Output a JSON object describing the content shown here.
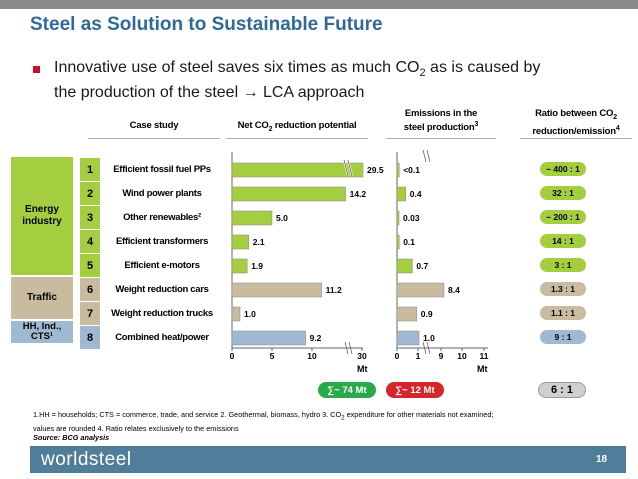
{
  "title": "Steel as Solution to Sustainable Future",
  "bullet": {
    "line1_prefix": "Innovative use of steel saves six times as much CO",
    "line1_sub": "2",
    "line1_suffix": " as is caused by",
    "line2": "the production of the steel → LCA approach"
  },
  "headers": {
    "case_study": "Case study",
    "net_prefix": "Net CO",
    "net_sub": "2",
    "net_suffix": " reduction potential",
    "emis_line1": "Emissions in the",
    "emis_line2_prefix": "steel production",
    "emis_line2_sup": "3",
    "ratio_line1_prefix": "Ratio between CO",
    "ratio_line1_sub": "2",
    "ratio_line2_prefix": "reduction/emission",
    "ratio_line2_sup": "4"
  },
  "groups": [
    {
      "label_l1": "Energy",
      "label_l2": "industry",
      "color": "#a4ce3f"
    },
    {
      "label_l1": "Traffic",
      "label_l2": "",
      "color": "#c8bb9f"
    },
    {
      "label_l1": "HH, Ind.,",
      "label_l2": "CTS¹",
      "color": "#9eb9d1"
    }
  ],
  "rows": [
    {
      "num": "1",
      "label": "Efficient fossil fuel PPs"
    },
    {
      "num": "2",
      "label": "Wind power plants"
    },
    {
      "num": "3",
      "label": "Other renewables²"
    },
    {
      "num": "4",
      "label": "Efficient transformers"
    },
    {
      "num": "5",
      "label": "Efficient e-motors"
    },
    {
      "num": "6",
      "label": "Weight reduction cars"
    },
    {
      "num": "7",
      "label": "Weight reduction trucks"
    },
    {
      "num": "8",
      "label": "Combined heat/power"
    }
  ],
  "chart_data": [
    {
      "type": "bar",
      "orientation": "horizontal",
      "title": "Net CO2 reduction potential",
      "categories": [
        "Efficient fossil fuel PPs",
        "Wind power plants",
        "Other renewables",
        "Efficient transformers",
        "Efficient e-motors",
        "Weight reduction cars",
        "Weight reduction trucks",
        "Combined heat/power"
      ],
      "values": [
        29.5,
        14.2,
        5.0,
        2.1,
        1.9,
        11.2,
        1.0,
        9.2
      ],
      "labels": [
        "29.5",
        "14.2",
        "5.0",
        "2.1",
        "1.9",
        "11.2",
        "1.0",
        "9.2"
      ],
      "xlabel": "Mt",
      "ticks": [
        "0",
        "5",
        "10",
        "30"
      ],
      "xlim": [
        0,
        30
      ],
      "axis_break": "between 15 and 29",
      "total": "∑~ 74 Mt"
    },
    {
      "type": "bar",
      "orientation": "horizontal",
      "title": "Emissions in the steel production",
      "categories": [
        "Efficient fossil fuel PPs",
        "Wind power plants",
        "Other renewables",
        "Efficient transformers",
        "Efficient e-motors",
        "Weight reduction cars",
        "Weight reduction trucks",
        "Combined heat/power"
      ],
      "values": [
        0.1,
        0.4,
        0.03,
        0.1,
        0.7,
        8.4,
        0.9,
        1.0
      ],
      "labels": [
        "<0.1",
        "0.4",
        "0.03",
        "0.1",
        "0.7",
        "8.4",
        "0.9",
        "1.0"
      ],
      "xlabel": "Mt",
      "ticks": [
        "0",
        "1",
        "9",
        "10",
        "11"
      ],
      "xlim": [
        0,
        11
      ],
      "axis_break": "between 1.3 and 8",
      "total": "∑~ 12 Mt"
    }
  ],
  "ratios": [
    "~ 400 : 1",
    "32 : 1",
    "~ 200 : 1",
    "14 : 1",
    "3 : 1",
    "1.3 : 1",
    "1.1 : 1",
    "9 : 1"
  ],
  "ratio_total": "6 : 1",
  "colors": {
    "energy": "#a4ce3f",
    "traffic": "#c8bb9f",
    "hh": "#9eb9d1",
    "sum_green": "#2aa84a",
    "sum_red": "#d6262b",
    "title_blue": "#2f6a99",
    "footer_blue": "#4f7d9a"
  },
  "footnote": {
    "line1": "1.HH = households; CTS = commerce, trade, and service 2. Geothermal, biomass, hydro 3. CO",
    "line1_sub": "2",
    "line1_rest": " expenditure for other materials not examined;",
    "line2": "values are rounded 4. Ratio relates exclusively to the emissions",
    "source": "Source: BCG analysis"
  },
  "footer": {
    "logo": "worldsteel",
    "page": "18"
  }
}
